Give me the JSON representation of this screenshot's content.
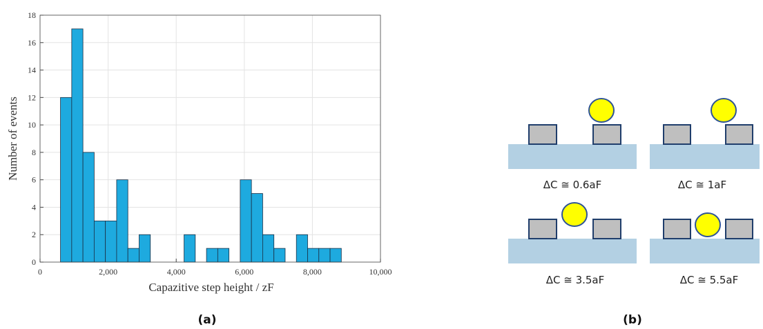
{
  "chart_data": {
    "type": "histogram",
    "xlabel": "Capazitive step height / zF",
    "ylabel": "Number of events",
    "bins": [
      600,
      930,
      1260,
      1590,
      1920,
      2250,
      2580,
      2910,
      3240,
      3570,
      3900,
      4230,
      4560,
      4890,
      5220,
      5550,
      5880,
      6210,
      6540,
      6870,
      7200,
      7530,
      7860,
      8190,
      8520,
      8850
    ],
    "values": [
      12,
      17,
      8,
      3,
      3,
      6,
      1,
      2,
      0,
      0,
      0,
      2,
      0,
      1,
      1,
      0,
      6,
      5,
      2,
      1,
      0,
      2,
      1,
      1,
      1
    ],
    "color": "#1eaadf",
    "xlim": [
      0,
      10000
    ],
    "xticks": [
      0,
      {
        "value": 2000,
        "label": "2,000"
      },
      {
        "value": 4000,
        "label": "4,000"
      },
      {
        "value": 6000,
        "label": "6,000"
      },
      {
        "value": 8000,
        "label": "8,000"
      },
      {
        "value": 10000,
        "label": "10,000"
      }
    ],
    "ylim": [
      0,
      18
    ],
    "yticks": [
      0,
      2,
      4,
      6,
      8,
      10,
      12,
      14,
      16,
      18
    ],
    "grid": true
  },
  "diagram": {
    "panels": [
      {
        "label": "ΔC ≅ 0.6aF"
      },
      {
        "label": "ΔC ≅ 1aF"
      },
      {
        "label": "ΔC ≅ 3.5aF"
      },
      {
        "label": "ΔC ≅ 5.5aF"
      }
    ]
  },
  "panel_labels": [
    "(a)",
    "(b)"
  ]
}
